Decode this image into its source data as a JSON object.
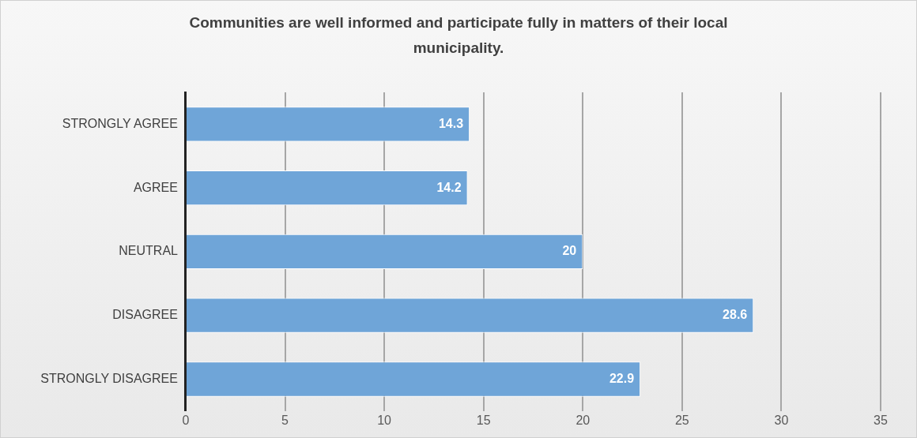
{
  "chart_data": {
    "type": "bar",
    "orientation": "horizontal",
    "title": "Communities are well informed and participate fully in matters of their local municipality.",
    "categories": [
      "STRONGLY AGREE",
      "AGREE",
      "NEUTRAL",
      "DISAGREE",
      "STRONGLY DISAGREE"
    ],
    "values": [
      14.3,
      14.2,
      20,
      28.6,
      22.9
    ],
    "color": "#6fa5d8",
    "xlim": [
      0,
      35
    ],
    "xticks": [
      0,
      5,
      10,
      15,
      20,
      25,
      30,
      35
    ],
    "grid": "x",
    "data_labels": true,
    "legend": false
  }
}
